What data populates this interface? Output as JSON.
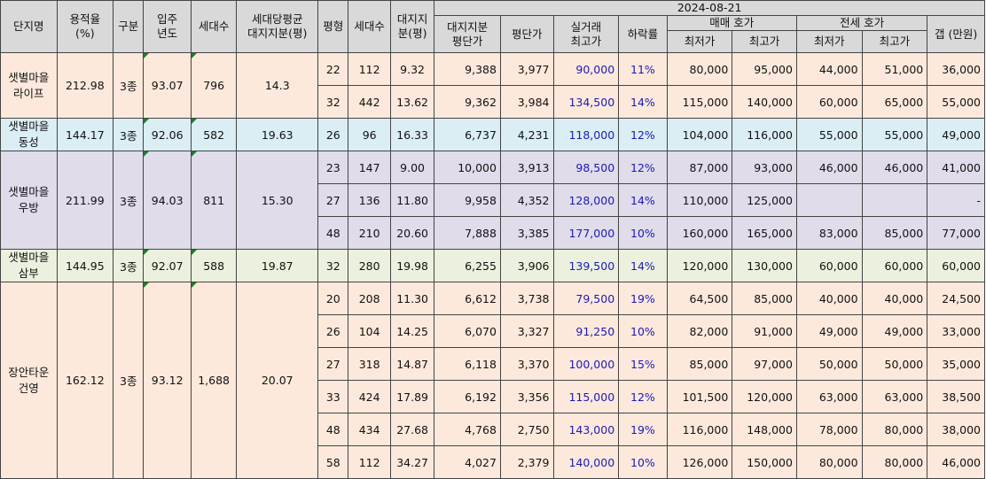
{
  "header": {
    "name": "단지명",
    "far": "용적율\n(%)",
    "type": "구분",
    "year": "입주\n년도",
    "households": "세대수",
    "land_share_avg": "세대당평균\n대지지분(평)",
    "pyeong": "평형",
    "unit_households": "세대수",
    "land_share": "대지지\n분(평)",
    "land_price": "대지지분\n평단가",
    "price_per_pyeong": "평단가",
    "real_max": "실거래\n최고가",
    "drop_rate": "하락률",
    "date": "2024-08-21",
    "sale": "매매 호가",
    "jeonse": "전세 호가",
    "min": "최저가",
    "max": "최고가",
    "gap": "갭 (만원)"
  },
  "complexes": [
    {
      "name": "샛별마을\n라이프",
      "far": "212.98",
      "type": "3종",
      "year": "93.07",
      "households": "796",
      "land_share_avg": "14.3",
      "theme": "life",
      "rows": [
        {
          "pyeong": "22",
          "hh": "112",
          "land": "9.32",
          "land_price": "9,388",
          "ppp": "3,977",
          "real": "90,000",
          "rate": "11%",
          "smin": "80,000",
          "smax": "95,000",
          "jmin": "44,000",
          "jmax": "51,000",
          "gap": "36,000"
        },
        {
          "pyeong": "32",
          "hh": "442",
          "land": "13.62",
          "land_price": "9,362",
          "ppp": "3,984",
          "real": "134,500",
          "rate": "14%",
          "smin": "115,000",
          "smax": "140,000",
          "jmin": "60,000",
          "jmax": "65,000",
          "gap": "55,000"
        }
      ]
    },
    {
      "name": "샛별마을\n동성",
      "far": "144.17",
      "type": "3종",
      "year": "92.06",
      "households": "582",
      "land_share_avg": "19.63",
      "theme": "dong",
      "rows": [
        {
          "pyeong": "26",
          "hh": "96",
          "land": "16.33",
          "land_price": "6,737",
          "ppp": "4,231",
          "real": "118,000",
          "rate": "12%",
          "smin": "104,000",
          "smax": "116,000",
          "jmin": "55,000",
          "jmax": "55,000",
          "gap": "49,000"
        }
      ]
    },
    {
      "name": "샛별마을\n우방",
      "far": "211.99",
      "type": "3종",
      "year": "94.03",
      "households": "811",
      "land_share_avg": "15.30",
      "theme": "woo",
      "rows": [
        {
          "pyeong": "23",
          "hh": "147",
          "land": "9.00",
          "land_price": "10,000",
          "ppp": "3,913",
          "real": "98,500",
          "rate": "12%",
          "smin": "87,000",
          "smax": "93,000",
          "jmin": "46,000",
          "jmax": "46,000",
          "gap": "41,000"
        },
        {
          "pyeong": "27",
          "hh": "136",
          "land": "11.80",
          "land_price": "9,958",
          "ppp": "4,352",
          "real": "128,000",
          "rate": "14%",
          "smin": "110,000",
          "smax": "125,000",
          "jmin": "",
          "jmax": "",
          "gap": "-"
        },
        {
          "pyeong": "48",
          "hh": "210",
          "land": "20.60",
          "land_price": "7,888",
          "ppp": "3,385",
          "real": "177,000",
          "rate": "10%",
          "smin": "160,000",
          "smax": "165,000",
          "jmin": "83,000",
          "jmax": "85,000",
          "gap": "77,000"
        }
      ]
    },
    {
      "name": "샛별마을\n삼부",
      "far": "144.95",
      "type": "3종",
      "year": "92.07",
      "households": "588",
      "land_share_avg": "19.87",
      "theme": "sam",
      "rows": [
        {
          "pyeong": "32",
          "hh": "280",
          "land": "19.98",
          "land_price": "6,255",
          "ppp": "3,906",
          "real": "139,500",
          "rate": "14%",
          "smin": "120,000",
          "smax": "130,000",
          "jmin": "60,000",
          "jmax": "60,000",
          "gap": "60,000"
        }
      ]
    },
    {
      "name": "장안타운\n건영",
      "far": "162.12",
      "type": "3종",
      "year": "93.12",
      "households": "1,688",
      "land_share_avg": "20.07",
      "theme": "jang",
      "rows": [
        {
          "pyeong": "20",
          "hh": "208",
          "land": "11.30",
          "land_price": "6,612",
          "ppp": "3,738",
          "real": "79,500",
          "rate": "19%",
          "smin": "64,500",
          "smax": "85,000",
          "jmin": "40,000",
          "jmax": "40,000",
          "gap": "24,500"
        },
        {
          "pyeong": "26",
          "hh": "104",
          "land": "14.25",
          "land_price": "6,070",
          "ppp": "3,327",
          "real": "91,250",
          "rate": "10%",
          "smin": "82,000",
          "smax": "91,000",
          "jmin": "49,000",
          "jmax": "49,000",
          "gap": "33,000"
        },
        {
          "pyeong": "27",
          "hh": "318",
          "land": "14.87",
          "land_price": "6,118",
          "ppp": "3,370",
          "real": "100,000",
          "rate": "15%",
          "smin": "85,000",
          "smax": "97,000",
          "jmin": "50,000",
          "jmax": "50,000",
          "gap": "35,000"
        },
        {
          "pyeong": "33",
          "hh": "424",
          "land": "17.89",
          "land_price": "6,192",
          "ppp": "3,356",
          "real": "115,000",
          "rate": "12%",
          "smin": "101,500",
          "smax": "120,000",
          "jmin": "63,000",
          "jmax": "63,000",
          "gap": "38,500"
        },
        {
          "pyeong": "48",
          "hh": "434",
          "land": "27.68",
          "land_price": "4,768",
          "ppp": "2,750",
          "real": "143,000",
          "rate": "19%",
          "smin": "116,000",
          "smax": "148,000",
          "jmin": "78,000",
          "jmax": "80,000",
          "gap": "38,000"
        },
        {
          "pyeong": "58",
          "hh": "112",
          "land": "34.27",
          "land_price": "4,027",
          "ppp": "2,379",
          "real": "140,000",
          "rate": "10%",
          "smin": "126,000",
          "smax": "150,000",
          "jmin": "80,000",
          "jmax": "80,000",
          "gap": "46,000"
        }
      ]
    }
  ],
  "colors": {
    "header_bg": "#d9d9d9",
    "life": "#fde9dc",
    "dong": "#daeef3",
    "woo": "#e0dcea",
    "sam": "#ebf1de",
    "jang": "#fde9dc",
    "price_text": "#1a1ab8"
  }
}
